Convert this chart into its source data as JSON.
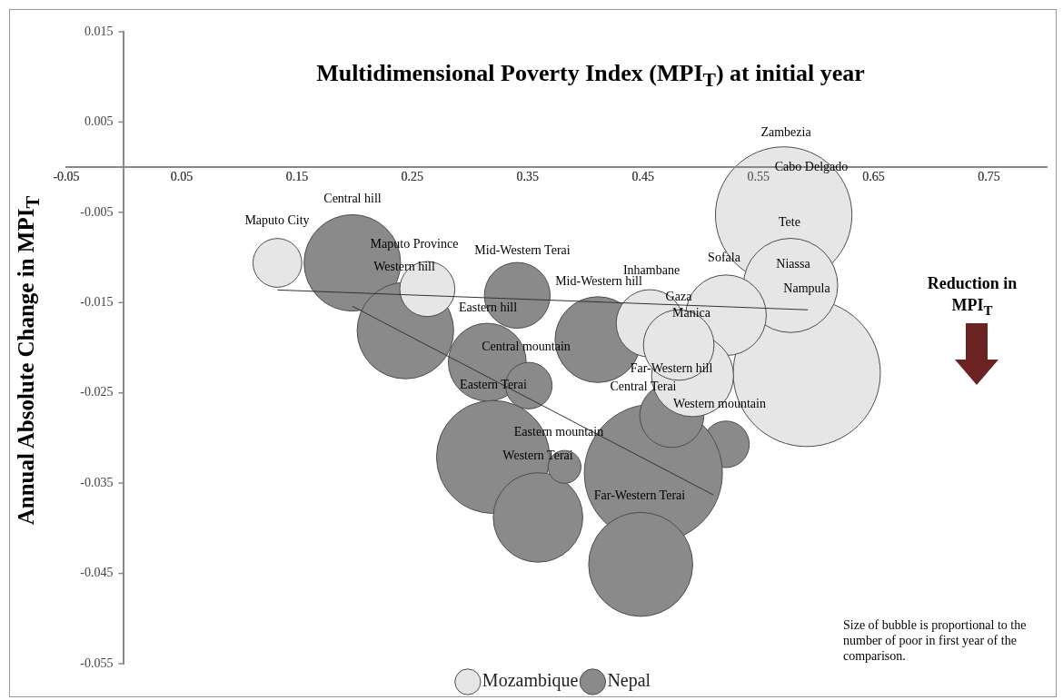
{
  "chart_data": {
    "type": "bubble",
    "title": "Multidimensional Poverty Index (MPI$_{T}$) at initial year",
    "ylabel": "Annual Absolute Change in MPI$_{T}$",
    "xlim": [
      -0.05,
      0.8
    ],
    "xticks": [
      -0.05,
      0.05,
      0.15,
      0.25,
      0.35,
      0.45,
      0.55,
      0.65,
      0.75
    ],
    "ylim": [
      -0.055,
      0.015
    ],
    "yticks": [
      -0.055,
      -0.045,
      -0.035,
      -0.025,
      -0.015,
      -0.005,
      0.005,
      0.015
    ],
    "grid": false,
    "legend": "bottom",
    "series": [
      {
        "name": "Mozambique",
        "type": "bubble",
        "color": "#e6e6e6",
        "x": [
          0.133,
          0.263,
          0.572,
          0.592,
          0.578,
          0.456,
          0.522,
          0.493,
          0.481
        ],
        "values": [
          -0.0106,
          -0.0135,
          -0.0053,
          -0.0228,
          -0.0131,
          -0.0173,
          -0.0164,
          -0.0231,
          -0.0197
        ],
        "sizes": [
          0.11,
          0.14,
          0.86,
          1,
          0.41,
          0.21,
          0.3,
          0.31,
          0.23
        ]
      },
      {
        "name": "Nepal",
        "type": "bubble",
        "color": "#8a8a8a",
        "x": [
          0.198,
          0.244,
          0.411,
          0.341,
          0.315,
          0.351,
          0.32,
          0.359,
          0.382,
          0.522,
          0.459,
          0.448,
          0.475
        ],
        "values": [
          -0.0106,
          -0.0181,
          -0.0191,
          -0.0142,
          -0.0216,
          -0.0242,
          -0.0321,
          -0.0388,
          -0.0332,
          -0.0307,
          -0.0339,
          -0.044,
          -0.0275
        ],
        "sizes": [
          0.43,
          0.43,
          0.34,
          0.2,
          0.28,
          0.1,
          0.59,
          0.37,
          0.05,
          0.1,
          0.88,
          0.5,
          0.19
        ]
      },
      {
        "type": "line",
        "color": "#333333",
        "x": [
          0.133,
          0.593
        ],
        "values": [
          -0.0136,
          -0.0158
        ]
      },
      {
        "type": "line",
        "color": "#333333",
        "x": [
          0.198,
          0.511
        ],
        "values": [
          -0.0154,
          -0.0363
        ]
      }
    ],
    "annotations": [
      "Maputo City",
      "Central hill",
      "Maputo Province",
      "Western hill",
      "Mid-Western Terai",
      "Eastern hill",
      "Central mountain",
      "Eastern Terai",
      "Zambezia",
      "Cabo Delgado",
      "Tete",
      "Sofala",
      "Niassa",
      "Nampula",
      "Inhambane",
      "Mid-Western hill",
      "Gaza",
      "Manica",
      "Far-Western hill",
      "Central Terai",
      "Western mountain",
      "Eastern mountain",
      "Western Terai",
      "Far-Western Terai",
      "Reduction in MPI$_{T}$",
      "Size of bubble is proportional to the number of poor in first year of the comparison."
    ]
  }
}
